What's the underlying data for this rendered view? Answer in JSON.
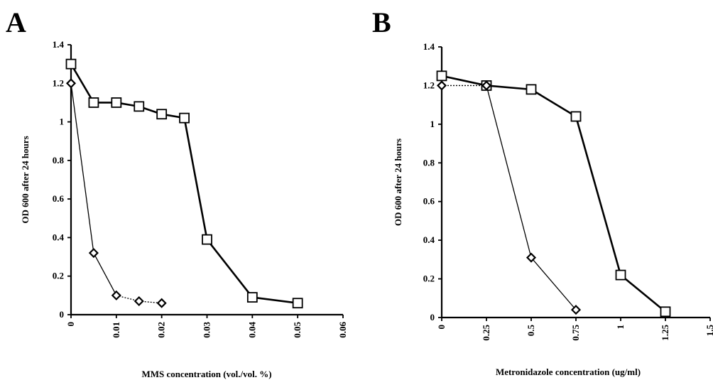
{
  "chart_data": [
    {
      "panel": "A",
      "type": "line",
      "xlabel": "MMS concentration (vol./vol. %)",
      "ylabel": "OD 600 after 24 hours",
      "xlim": [
        0,
        0.06
      ],
      "ylim": [
        0,
        1.4
      ],
      "xticks": [
        0,
        0.01,
        0.02,
        0.03,
        0.04,
        0.05,
        0.06
      ],
      "xtick_labels": [
        "0",
        "0.01",
        "0.02",
        "0.03",
        "0.04",
        "0.05",
        "0.06"
      ],
      "yticks": [
        0,
        0.2,
        0.4,
        0.6,
        0.8,
        1,
        1.2,
        1.4
      ],
      "ytick_labels": [
        "0",
        "0.2",
        "0.4",
        "0.6",
        "0.8",
        "1",
        "1.2",
        "1.4"
      ],
      "grid": false,
      "series": [
        {
          "marker": "square",
          "line": "solid-thick",
          "points": [
            [
              0,
              1.3
            ],
            [
              0.005,
              1.1
            ],
            [
              0.01,
              1.1
            ],
            [
              0.015,
              1.08
            ],
            [
              0.02,
              1.04
            ],
            [
              0.025,
              1.02
            ],
            [
              0.03,
              0.39
            ],
            [
              0.04,
              0.09
            ],
            [
              0.05,
              0.06
            ]
          ]
        },
        {
          "marker": "diamond",
          "line": "solid-thin",
          "dotted_tail": true,
          "points": [
            [
              0,
              1.2
            ],
            [
              0.005,
              0.32
            ],
            [
              0.01,
              0.1
            ],
            [
              0.015,
              0.07
            ],
            [
              0.02,
              0.06
            ]
          ]
        }
      ]
    },
    {
      "panel": "B",
      "type": "line",
      "xlabel": "Metronidazole concentration (ug/ml)",
      "ylabel": "OD 600 after 24 hours",
      "xlim": [
        0,
        1.5
      ],
      "ylim": [
        0,
        1.4
      ],
      "xticks": [
        0,
        0.25,
        0.5,
        0.75,
        1,
        1.25,
        1.5
      ],
      "xtick_labels": [
        "0",
        "0.25",
        "0.5",
        "0.75",
        "1",
        "1.25",
        "1.5"
      ],
      "yticks": [
        0,
        0.2,
        0.4,
        0.6,
        0.8,
        1,
        1.2,
        1.4
      ],
      "ytick_labels": [
        "0",
        "0.2",
        "0.4",
        "0.6",
        "0.8",
        "1",
        "1.2",
        "1.4"
      ],
      "grid": false,
      "series": [
        {
          "marker": "square",
          "line": "solid-thick",
          "points": [
            [
              0,
              1.25
            ],
            [
              0.25,
              1.2
            ],
            [
              0.5,
              1.18
            ],
            [
              0.75,
              1.04
            ],
            [
              1,
              0.22
            ],
            [
              1.25,
              0.03
            ]
          ]
        },
        {
          "marker": "diamond",
          "line": "solid-thin",
          "dotted_head": true,
          "points": [
            [
              0,
              1.2
            ],
            [
              0.25,
              1.2
            ],
            [
              0.5,
              0.31
            ],
            [
              0.75,
              0.04
            ]
          ]
        }
      ]
    }
  ]
}
